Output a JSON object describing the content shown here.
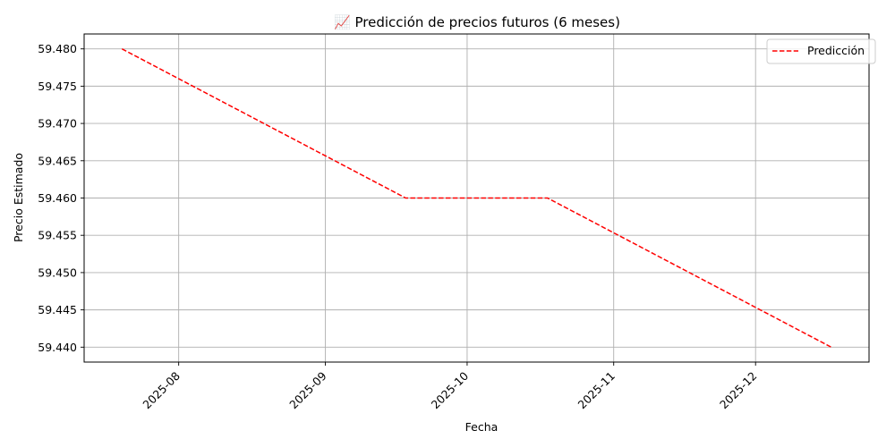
{
  "chart_data": {
    "type": "line",
    "title": "📈 Predicción de precios futuros (6 meses)",
    "xlabel": "Fecha",
    "ylabel": "Precio Estimado",
    "x_ticks": [
      {
        "date": "2025-08-01",
        "label": "2025-08"
      },
      {
        "date": "2025-09-01",
        "label": "2025-09"
      },
      {
        "date": "2025-10-01",
        "label": "2025-10"
      },
      {
        "date": "2025-11-01",
        "label": "2025-11"
      },
      {
        "date": "2025-12-01",
        "label": "2025-12"
      }
    ],
    "y_ticks": [
      59.44,
      59.445,
      59.45,
      59.455,
      59.46,
      59.465,
      59.47,
      59.475,
      59.48
    ],
    "y_tick_labels": [
      "59.440",
      "59.445",
      "59.450",
      "59.455",
      "59.460",
      "59.465",
      "59.470",
      "59.475",
      "59.480"
    ],
    "xlim": [
      "2025-07-12",
      "2025-12-25"
    ],
    "ylim": [
      59.438,
      59.482
    ],
    "grid": true,
    "legend_position": "top-right",
    "series": [
      {
        "name": "Predicción",
        "color": "#ff0000",
        "line_style": "dashed",
        "points": [
          {
            "x": "2025-07-20",
            "y": 59.48
          },
          {
            "x": "2025-09-18",
            "y": 59.46
          },
          {
            "x": "2025-10-18",
            "y": 59.46
          },
          {
            "x": "2025-12-17",
            "y": 59.44
          }
        ]
      }
    ]
  }
}
